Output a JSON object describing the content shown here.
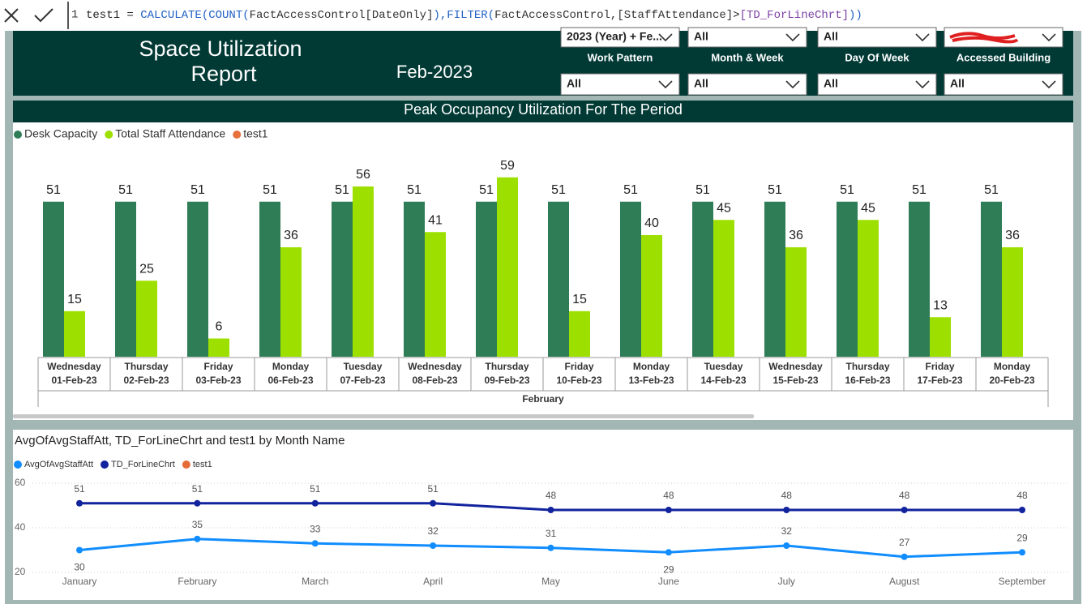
{
  "formula_bar": {
    "line_number": "1",
    "tokens": [
      {
        "text": "test1 = ",
        "color": "#222222"
      },
      {
        "text": "CALCULATE(COUNT(",
        "color": "#1f5fc4"
      },
      {
        "text": "FactAccessControl[DateOnly]",
        "color": "#333333"
      },
      {
        "text": "),",
        "color": "#1f5fc4"
      },
      {
        "text": "FILTER(",
        "color": "#1f5fc4"
      },
      {
        "text": "FactAccessControl,",
        "color": "#333333"
      },
      {
        "text": "[StaffAttendance]",
        "color": "#333333"
      },
      {
        "text": ">",
        "color": "#222222"
      },
      {
        "text": "[TD_ForLineChrt]",
        "color": "#7b3fa3"
      },
      {
        "text": "))",
        "color": "#1f5fc4"
      }
    ]
  },
  "header": {
    "title_lines": [
      "Space Utilization",
      "Report"
    ],
    "period": "Feb-2023"
  },
  "top_row": [
    "2023 (Year) + Fe...",
    "All",
    "All"
  ],
  "slicers": [
    {
      "label": "Work Pattern",
      "value": "All"
    },
    {
      "label": "Month & Week",
      "value": "All"
    },
    {
      "label": "Day Of Week",
      "value": "All"
    },
    {
      "label": "Accessed Building",
      "value": "All"
    }
  ],
  "chart_data": [
    {
      "type": "bar",
      "title": "Peak Occupancy Utilization For The Period",
      "categories": [
        {
          "day": "Wednesday",
          "date": "01-Feb-23"
        },
        {
          "day": "Thursday",
          "date": "02-Feb-23"
        },
        {
          "day": "Friday",
          "date": "03-Feb-23"
        },
        {
          "day": "Monday",
          "date": "06-Feb-23"
        },
        {
          "day": "Tuesday",
          "date": "07-Feb-23"
        },
        {
          "day": "Wednesday",
          "date": "08-Feb-23"
        },
        {
          "day": "Thursday",
          "date": "09-Feb-23"
        },
        {
          "day": "Friday",
          "date": "10-Feb-23"
        },
        {
          "day": "Monday",
          "date": "13-Feb-23"
        },
        {
          "day": "Tuesday",
          "date": "14-Feb-23"
        },
        {
          "day": "Wednesday",
          "date": "15-Feb-23"
        },
        {
          "day": "Thursday",
          "date": "16-Feb-23"
        },
        {
          "day": "Friday",
          "date": "17-Feb-23"
        },
        {
          "day": "Monday",
          "date": "20-Feb-23"
        }
      ],
      "group_label": "February",
      "series": [
        {
          "name": "Desk Capacity",
          "color": "#2e7d57",
          "values": [
            51,
            51,
            51,
            51,
            51,
            51,
            51,
            51,
            51,
            51,
            51,
            51,
            51,
            51
          ]
        },
        {
          "name": "Total Staff Attendance",
          "color": "#9de000",
          "values": [
            15,
            25,
            6,
            36,
            56,
            41,
            59,
            15,
            40,
            45,
            36,
            45,
            13,
            36
          ]
        },
        {
          "name": "test1",
          "color": "#e8703a",
          "values": [
            null,
            null,
            null,
            null,
            null,
            null,
            null,
            null,
            null,
            null,
            null,
            null,
            null,
            null
          ]
        }
      ],
      "ylim": [
        0,
        60
      ]
    },
    {
      "type": "line",
      "title": "AvgOfAvgStaffAtt, TD_ForLineChrt and test1 by Month Name",
      "categories": [
        "January",
        "February",
        "March",
        "April",
        "May",
        "June",
        "July",
        "August",
        "September"
      ],
      "series": [
        {
          "name": "AvgOfAvgStaffAtt",
          "color": "#118dff",
          "values": [
            30,
            35,
            33,
            32,
            31,
            29,
            32,
            27,
            29
          ]
        },
        {
          "name": "TD_ForLineChrt",
          "color": "#12239e",
          "values": [
            51,
            51,
            51,
            51,
            48,
            48,
            48,
            48,
            48
          ]
        },
        {
          "name": "test1",
          "color": "#e66c37",
          "values": [
            null,
            null,
            null,
            null,
            null,
            null,
            null,
            null,
            null
          ]
        }
      ],
      "ylim": [
        20,
        60
      ],
      "yticks": [
        20,
        40,
        60
      ],
      "grid": true
    }
  ]
}
